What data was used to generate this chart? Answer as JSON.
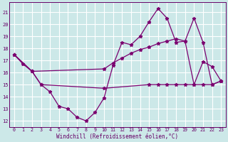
{
  "xlabel": "Windchill (Refroidissement éolien,°C)",
  "background_color": "#cce8e8",
  "grid_color": "#ffffff",
  "line_color": "#7b0070",
  "xlim_min": -0.5,
  "xlim_max": 23.5,
  "ylim_min": 11.5,
  "ylim_max": 21.8,
  "yticks": [
    12,
    13,
    14,
    15,
    16,
    17,
    18,
    19,
    20,
    21
  ],
  "xticks": [
    0,
    1,
    2,
    3,
    4,
    5,
    6,
    7,
    8,
    9,
    10,
    11,
    12,
    13,
    14,
    15,
    16,
    17,
    18,
    19,
    20,
    21,
    22,
    23
  ],
  "line1_x": [
    0,
    1,
    2,
    3,
    4,
    5,
    6,
    7,
    8,
    9,
    10,
    11,
    12,
    13,
    14,
    15,
    16,
    17,
    18,
    19,
    20,
    21,
    22,
    23
  ],
  "line1_y": [
    17.5,
    16.7,
    16.1,
    15.0,
    14.4,
    13.2,
    13.0,
    12.3,
    12.0,
    12.7,
    13.9,
    16.6,
    18.5,
    18.3,
    19.0,
    20.2,
    21.3,
    20.5,
    18.5,
    18.6,
    15.0,
    16.9,
    16.5,
    15.3
  ],
  "line2_x": [
    0,
    2,
    3,
    10,
    15,
    16,
    17,
    18,
    19,
    20,
    21,
    22,
    23
  ],
  "line2_y": [
    17.5,
    16.1,
    15.0,
    14.7,
    15.0,
    15.0,
    15.0,
    15.0,
    15.0,
    15.0,
    15.0,
    15.0,
    15.3
  ],
  "line3_x": [
    0,
    2,
    10,
    11,
    12,
    13,
    14,
    15,
    16,
    17,
    18,
    19,
    20,
    21,
    22,
    23
  ],
  "line3_y": [
    17.5,
    16.1,
    16.3,
    16.8,
    17.2,
    17.6,
    17.9,
    18.1,
    18.4,
    18.6,
    18.8,
    18.6,
    20.5,
    18.5,
    15.0,
    15.3
  ]
}
